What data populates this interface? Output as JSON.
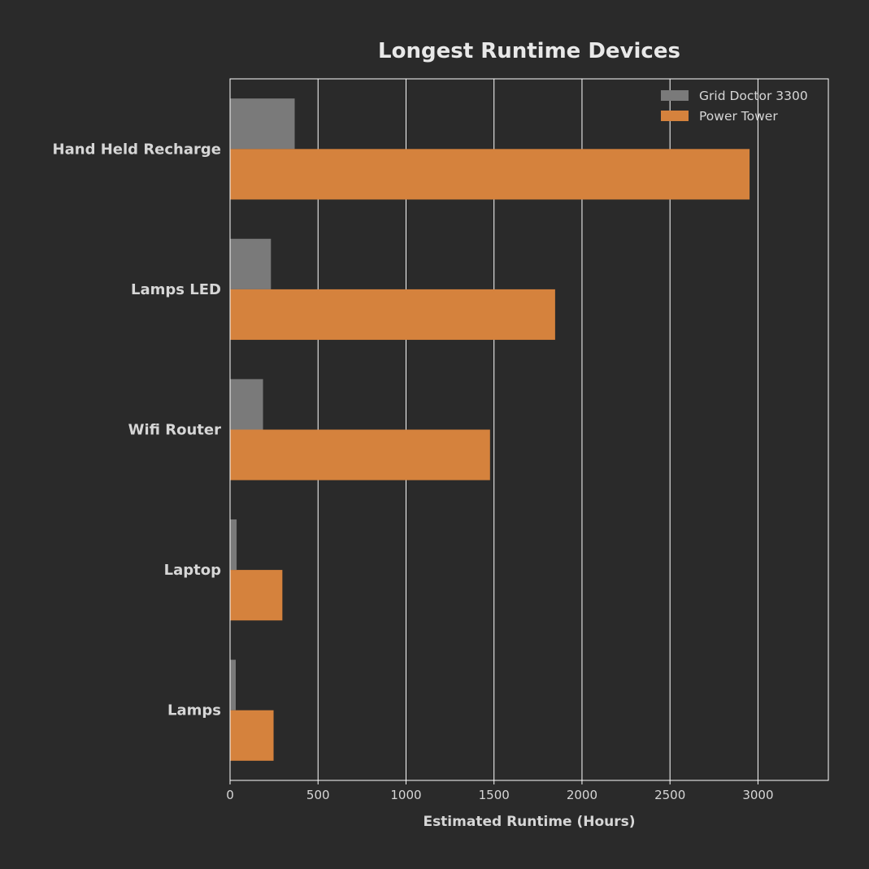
{
  "colors": {
    "background": "#2a2a2a",
    "frame": "#ffffff",
    "grid": "#ffffff",
    "text": "#d6d6d6",
    "title": "#e8e8e8"
  },
  "chart_data": {
    "type": "bar",
    "orientation": "horizontal",
    "title": "Longest Runtime Devices",
    "xlabel": "Estimated Runtime (Hours)",
    "ylabel": "",
    "categories": [
      "Hand Held Recharge",
      "Lamps LED",
      "Wifi Router",
      "Laptop",
      "Lamps"
    ],
    "series": [
      {
        "name": "Grid Doctor 3300",
        "color": "#7a7a7a",
        "values": [
          365,
          230,
          185,
          35,
          30
        ]
      },
      {
        "name": "Power Tower",
        "color": "#d5823d",
        "values": [
          2950,
          1845,
          1475,
          295,
          245
        ]
      }
    ],
    "xlim": [
      0,
      3400
    ],
    "xticks": [
      0,
      500,
      1000,
      1500,
      2000,
      2500,
      3000
    ],
    "grid": "vertical",
    "legend_position": "top-right"
  }
}
